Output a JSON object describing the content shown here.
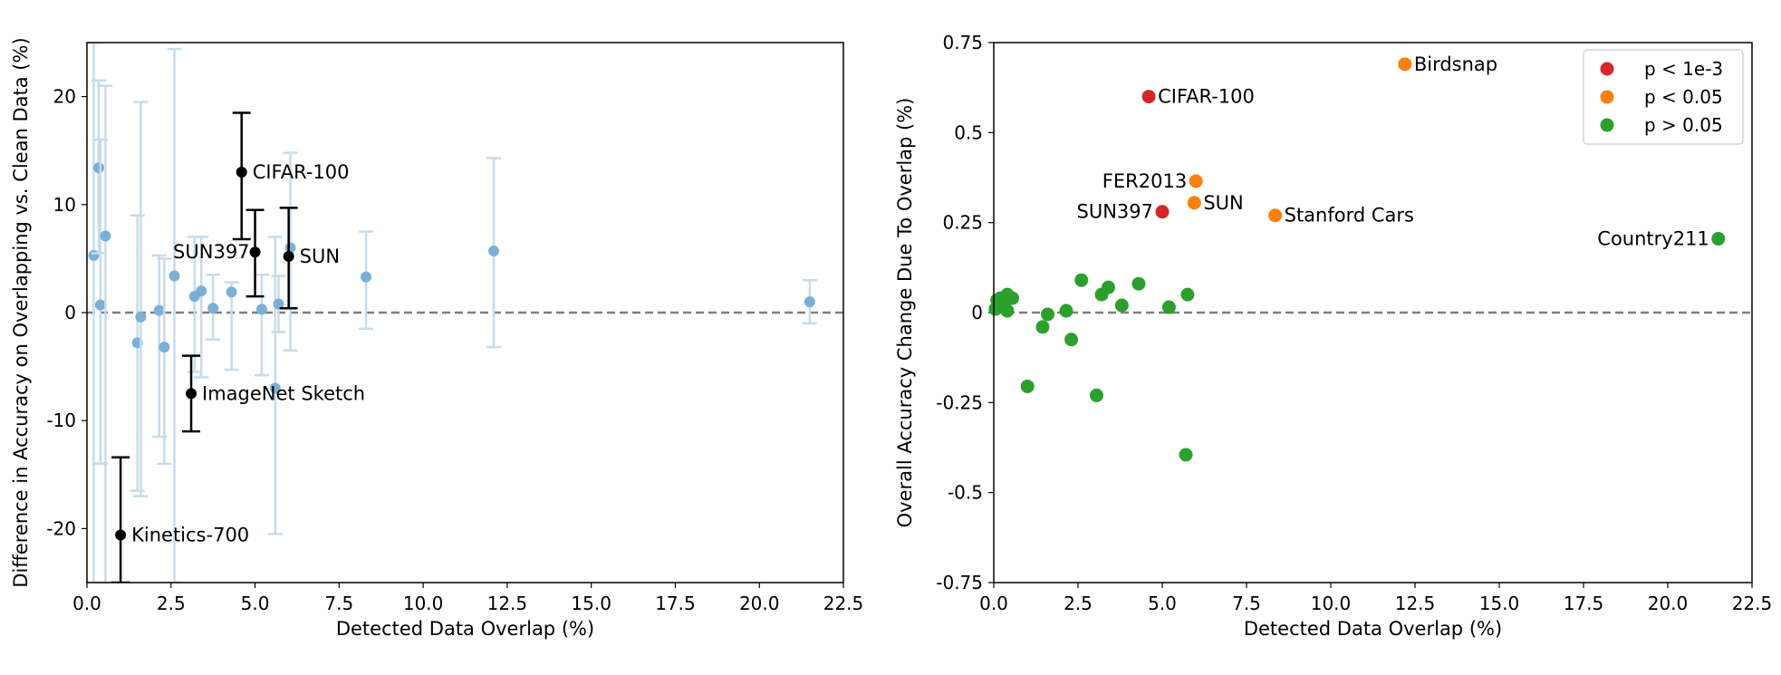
{
  "chart_data": [
    {
      "type": "scatter",
      "xlabel": "Detected Data Overlap (%)",
      "ylabel": "Difference in Accuracy on Overlapping vs. Clean Data (%)",
      "xlim": [
        0,
        22.5
      ],
      "ylim": [
        -25,
        25
      ],
      "x_ticks": [
        0,
        2.5,
        5,
        7.5,
        10,
        12.5,
        15,
        17.5,
        20,
        22.5
      ],
      "x_tick_labels": [
        "0.0",
        "2.5",
        "5.0",
        "7.5",
        "10.0",
        "12.5",
        "15.0",
        "17.5",
        "20.0",
        "22.5"
      ],
      "y_ticks": [
        -20,
        -10,
        0,
        10,
        20
      ],
      "y_tick_labels": [
        "-20",
        "-10",
        "0",
        "10",
        "20"
      ],
      "reference_line": {
        "y": 0,
        "style": "dashed",
        "color": "#7f7f7f"
      },
      "grid": false,
      "colors": {
        "background_points": "#7bafd6",
        "background_errorbars": "#c6dcec",
        "highlight": "#000000"
      },
      "background_points": [
        {
          "x": 0.2,
          "y": 5.3,
          "lo": -25,
          "hi": 25
        },
        {
          "x": 0.35,
          "y": 13.4,
          "lo": 5.5,
          "hi": 21.5
        },
        {
          "x": 0.4,
          "y": 0.7,
          "lo": -14,
          "hi": 16
        },
        {
          "x": 0.55,
          "y": 7.1,
          "lo": -25,
          "hi": 21
        },
        {
          "x": 1.5,
          "y": -2.8,
          "lo": -16.5,
          "hi": 9
        },
        {
          "x": 1.6,
          "y": -0.4,
          "lo": -17,
          "hi": 19.5
        },
        {
          "x": 2.15,
          "y": 0.2,
          "lo": -11.5,
          "hi": 5.3
        },
        {
          "x": 2.3,
          "y": -3.2,
          "lo": -14,
          "hi": 5
        },
        {
          "x": 2.6,
          "y": 3.4,
          "lo": -25,
          "hi": 24.4
        },
        {
          "x": 3.2,
          "y": 1.5,
          "lo": -5.5,
          "hi": 7
        },
        {
          "x": 3.4,
          "y": 2,
          "lo": -6,
          "hi": 7
        },
        {
          "x": 3.75,
          "y": 0.4,
          "lo": -2.5,
          "hi": 3.5
        },
        {
          "x": 4.3,
          "y": 1.9,
          "lo": -5.3,
          "hi": 2.8
        },
        {
          "x": 5.2,
          "y": 0.3,
          "lo": -5.8,
          "hi": 3.5
        },
        {
          "x": 5.6,
          "y": -7,
          "lo": -20.5,
          "hi": 7
        },
        {
          "x": 5.7,
          "y": 0.8,
          "lo": -1.8,
          "hi": 3.4
        },
        {
          "x": 6.05,
          "y": 6,
          "lo": -3.5,
          "hi": 14.8
        },
        {
          "x": 8.3,
          "y": 3.3,
          "lo": -1.5,
          "hi": 7.5
        },
        {
          "x": 12.1,
          "y": 5.7,
          "lo": -3.2,
          "hi": 14.3
        },
        {
          "x": 21.5,
          "y": 1,
          "lo": -1,
          "hi": 3
        }
      ],
      "highlighted_points": [
        {
          "label": "CIFAR-100",
          "x": 4.6,
          "y": 13,
          "lo": 6.8,
          "hi": 18.5,
          "label_side": "right"
        },
        {
          "label": "SUN397",
          "x": 5.0,
          "y": 5.6,
          "lo": 1.5,
          "hi": 9.5,
          "label_side": "left"
        },
        {
          "label": "SUN",
          "x": 6.0,
          "y": 5.2,
          "lo": 0.4,
          "hi": 9.7,
          "label_side": "right"
        },
        {
          "label": "ImageNet Sketch",
          "x": 3.1,
          "y": -7.5,
          "lo": -11,
          "hi": -4,
          "label_side": "right"
        },
        {
          "label": "Kinetics-700",
          "x": 1.0,
          "y": -20.6,
          "lo": -25,
          "hi": -13.4,
          "label_side": "right"
        }
      ]
    },
    {
      "type": "scatter",
      "xlabel": "Detected Data Overlap (%)",
      "ylabel": "Overall Accuracy Change Due To Overlap (%)",
      "xlim": [
        0,
        22.5
      ],
      "ylim": [
        -0.75,
        0.75
      ],
      "x_ticks": [
        0,
        2.5,
        5,
        7.5,
        10,
        12.5,
        15,
        17.5,
        20,
        22.5
      ],
      "x_tick_labels": [
        "0.0",
        "2.5",
        "5.0",
        "7.5",
        "10.0",
        "12.5",
        "15.0",
        "17.5",
        "20.0",
        "22.5"
      ],
      "y_ticks": [
        -0.75,
        -0.5,
        -0.25,
        0,
        0.25,
        0.5,
        0.75
      ],
      "y_tick_labels": [
        "-0.75",
        "-0.5",
        "-0.25",
        "0",
        "0.25",
        "0.5",
        "0.75"
      ],
      "reference_line": {
        "y": 0,
        "style": "dashed",
        "color": "#7f7f7f"
      },
      "grid": false,
      "legend": {
        "placement": "top-right",
        "entries": [
          {
            "label": "p < 1e-3",
            "color": "#d62728"
          },
          {
            "label": "p < 0.05",
            "color": "#ff7f0e"
          },
          {
            "label": "p > 0.05",
            "color": "#2ca02c"
          }
        ]
      },
      "points": [
        {
          "x": 4.6,
          "y": 0.6,
          "group": 0,
          "label": "CIFAR-100",
          "label_side": "right"
        },
        {
          "x": 5.0,
          "y": 0.28,
          "group": 0,
          "label": "SUN397",
          "label_side": "left"
        },
        {
          "x": 12.2,
          "y": 0.69,
          "group": 1,
          "label": "Birdsnap",
          "label_side": "right"
        },
        {
          "x": 6.0,
          "y": 0.365,
          "group": 1,
          "label": "FER2013",
          "label_side": "left"
        },
        {
          "x": 5.95,
          "y": 0.305,
          "group": 1,
          "label": "SUN",
          "label_side": "right"
        },
        {
          "x": 8.35,
          "y": 0.27,
          "group": 1,
          "label": "Stanford Cars",
          "label_side": "right"
        },
        {
          "x": 21.5,
          "y": 0.205,
          "group": 2,
          "label": "Country211",
          "label_side": "left"
        },
        {
          "x": 0.05,
          "y": 0.01,
          "group": 2
        },
        {
          "x": 0.1,
          "y": 0.035,
          "group": 2
        },
        {
          "x": 0.2,
          "y": 0.04,
          "group": 2
        },
        {
          "x": 0.3,
          "y": 0.02,
          "group": 2
        },
        {
          "x": 0.4,
          "y": 0.05,
          "group": 2
        },
        {
          "x": 0.4,
          "y": 0.005,
          "group": 2
        },
        {
          "x": 0.55,
          "y": 0.04,
          "group": 2
        },
        {
          "x": 1.0,
          "y": -0.205,
          "group": 2
        },
        {
          "x": 1.45,
          "y": -0.04,
          "group": 2
        },
        {
          "x": 1.6,
          "y": -0.005,
          "group": 2
        },
        {
          "x": 2.15,
          "y": 0.005,
          "group": 2
        },
        {
          "x": 2.3,
          "y": -0.075,
          "group": 2
        },
        {
          "x": 2.6,
          "y": 0.09,
          "group": 2
        },
        {
          "x": 3.05,
          "y": -0.23,
          "group": 2
        },
        {
          "x": 3.2,
          "y": 0.05,
          "group": 2
        },
        {
          "x": 3.4,
          "y": 0.07,
          "group": 2
        },
        {
          "x": 3.8,
          "y": 0.02,
          "group": 2
        },
        {
          "x": 4.3,
          "y": 0.08,
          "group": 2
        },
        {
          "x": 5.2,
          "y": 0.015,
          "group": 2
        },
        {
          "x": 5.7,
          "y": -0.395,
          "group": 2
        },
        {
          "x": 5.75,
          "y": 0.05,
          "group": 2
        }
      ]
    }
  ]
}
